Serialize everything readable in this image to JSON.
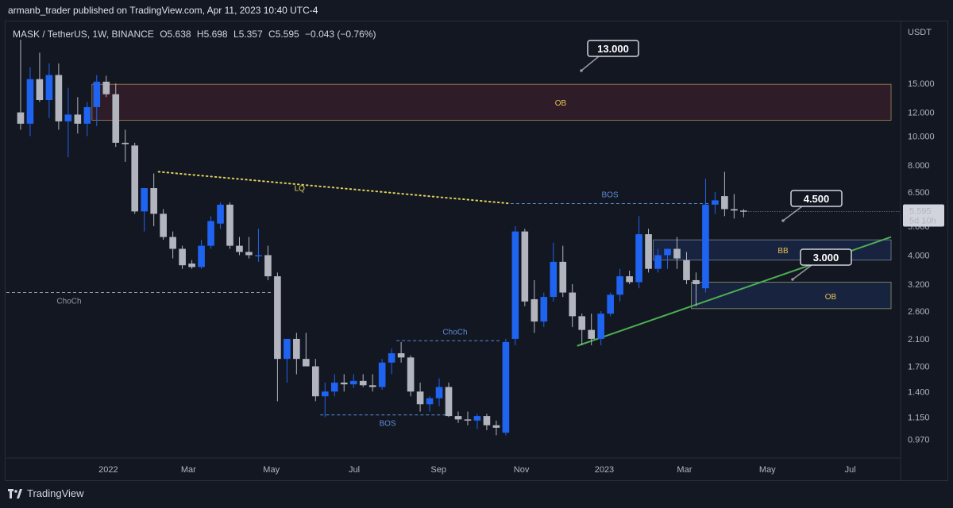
{
  "header": {
    "publisher": "armanb_trader published on TradingView.com, Apr 11, 2023 10:40 UTC-4",
    "symbol": "MASK / TetherUS, 1W, BINANCE",
    "open": "O5.638",
    "high": "H5.698",
    "low": "L5.357",
    "close": "C5.595",
    "change": "−0.043 (−0.76%)"
  },
  "footer": {
    "brand": "TradingView"
  },
  "colors": {
    "bull": "#1f63f1",
    "bear": "#b2b5be",
    "background": "#131722",
    "ob_zone": "#2e1c28",
    "bb_zone": "#17233f",
    "trendline": "#4caf50",
    "lq_line": "#e0d05a",
    "bos_line": "#5b8ad6",
    "label_text": "#e7c352"
  },
  "chart_data": {
    "type": "candlestick",
    "title": "MASK / TetherUS, 1W, BINANCE",
    "scale": "log",
    "ylabel": "USDT",
    "ylim": [
      0.85,
      21
    ],
    "y_ticks": [
      "15.000",
      "12.000",
      "10.000",
      "8.000",
      "6.500",
      "5.000",
      "4.000",
      "3.200",
      "2.600",
      "2.100",
      "1.700",
      "1.400",
      "1.150",
      "0.970"
    ],
    "x_ticks": [
      {
        "label": "2022",
        "date": "2022-01-01"
      },
      {
        "label": "Mar",
        "date": "2022-03-01"
      },
      {
        "label": "May",
        "date": "2022-05-01"
      },
      {
        "label": "Jul",
        "date": "2022-07-01"
      },
      {
        "label": "Sep",
        "date": "2022-09-01"
      },
      {
        "label": "Nov",
        "date": "2022-11-01"
      },
      {
        "label": "2023",
        "date": "2023-01-01"
      },
      {
        "label": "Mar",
        "date": "2023-03-01"
      },
      {
        "label": "May",
        "date": "2023-05-01"
      },
      {
        "label": "Jul",
        "date": "2023-07-01"
      }
    ],
    "candles": [
      [
        "2021-10-25",
        12.0,
        21.0,
        10.5,
        11.0
      ],
      [
        "2021-11-01",
        11.0,
        17.0,
        10.0,
        15.5
      ],
      [
        "2021-11-08",
        15.5,
        19.0,
        13.0,
        13.2
      ],
      [
        "2021-11-15",
        13.2,
        17.5,
        11.5,
        16.0
      ],
      [
        "2021-11-22",
        16.0,
        17.5,
        10.5,
        11.2
      ],
      [
        "2021-11-29",
        11.2,
        14.5,
        8.5,
        11.8
      ],
      [
        "2021-12-06",
        11.8,
        13.5,
        10.2,
        11.0
      ],
      [
        "2021-12-13",
        11.0,
        13.0,
        10.0,
        12.5
      ],
      [
        "2021-12-20",
        12.5,
        16.0,
        10.8,
        15.2
      ],
      [
        "2021-12-27",
        15.2,
        15.9,
        13.5,
        13.8
      ],
      [
        "2022-01-03",
        13.8,
        15.0,
        9.2,
        9.5
      ],
      [
        "2022-01-10",
        9.5,
        10.5,
        8.2,
        9.4
      ],
      [
        "2022-01-17",
        9.3,
        9.5,
        5.5,
        5.6
      ],
      [
        "2022-01-24",
        5.6,
        6.7,
        4.8,
        6.7
      ],
      [
        "2022-01-31",
        6.7,
        7.5,
        5.0,
        5.5
      ],
      [
        "2022-02-07",
        5.5,
        5.7,
        4.5,
        4.6
      ],
      [
        "2022-02-14",
        4.6,
        4.8,
        3.9,
        4.2
      ],
      [
        "2022-02-21",
        4.2,
        4.3,
        3.6,
        3.7
      ],
      [
        "2022-02-28",
        3.75,
        3.85,
        3.6,
        3.65
      ],
      [
        "2022-03-07",
        3.65,
        4.5,
        3.6,
        4.3
      ],
      [
        "2022-03-14",
        4.3,
        5.4,
        4.2,
        5.2
      ],
      [
        "2022-03-21",
        5.1,
        6.0,
        4.9,
        5.9
      ],
      [
        "2022-03-28",
        5.9,
        6.0,
        4.2,
        4.3
      ],
      [
        "2022-04-04",
        4.3,
        4.6,
        4.0,
        4.1
      ],
      [
        "2022-04-11",
        4.1,
        4.6,
        3.9,
        4.0
      ],
      [
        "2022-04-18",
        4.0,
        4.9,
        3.8,
        4.0
      ],
      [
        "2022-04-25",
        4.0,
        4.3,
        3.3,
        3.4
      ],
      [
        "2022-05-02",
        3.4,
        3.5,
        1.3,
        1.8
      ],
      [
        "2022-05-09",
        1.8,
        2.1,
        1.5,
        2.1
      ],
      [
        "2022-05-16",
        2.1,
        2.2,
        1.6,
        1.8
      ],
      [
        "2022-05-23",
        1.8,
        2.2,
        1.7,
        1.7
      ],
      [
        "2022-05-30",
        1.7,
        1.8,
        1.3,
        1.35
      ],
      [
        "2022-06-06",
        1.35,
        1.5,
        1.15,
        1.4
      ],
      [
        "2022-06-13",
        1.4,
        1.6,
        1.35,
        1.5
      ],
      [
        "2022-06-20",
        1.5,
        1.6,
        1.4,
        1.48
      ],
      [
        "2022-06-27",
        1.48,
        1.6,
        1.44,
        1.52
      ],
      [
        "2022-07-04",
        1.52,
        1.6,
        1.45,
        1.47
      ],
      [
        "2022-07-11",
        1.47,
        1.6,
        1.4,
        1.45
      ],
      [
        "2022-07-18",
        1.45,
        1.8,
        1.42,
        1.75
      ],
      [
        "2022-07-25",
        1.75,
        1.95,
        1.6,
        1.88
      ],
      [
        "2022-08-01",
        1.88,
        2.05,
        1.75,
        1.82
      ],
      [
        "2022-08-08",
        1.82,
        1.85,
        1.35,
        1.4
      ],
      [
        "2022-08-15",
        1.4,
        1.5,
        1.2,
        1.27
      ],
      [
        "2022-08-22",
        1.27,
        1.35,
        1.2,
        1.33
      ],
      [
        "2022-08-29",
        1.33,
        1.55,
        1.25,
        1.45
      ],
      [
        "2022-09-05",
        1.45,
        1.5,
        1.15,
        1.16
      ],
      [
        "2022-09-12",
        1.16,
        1.2,
        1.1,
        1.13
      ],
      [
        "2022-09-19",
        1.13,
        1.2,
        1.08,
        1.12
      ],
      [
        "2022-09-26",
        1.12,
        1.18,
        1.05,
        1.16
      ],
      [
        "2022-10-03",
        1.16,
        1.18,
        1.04,
        1.08
      ],
      [
        "2022-10-10",
        1.08,
        1.12,
        1.0,
        1.06
      ],
      [
        "2022-10-17",
        1.02,
        2.1,
        1.0,
        2.05
      ],
      [
        "2022-10-24",
        2.1,
        5.0,
        2.0,
        4.8
      ],
      [
        "2022-10-31",
        4.8,
        4.9,
        2.7,
        2.8
      ],
      [
        "2022-11-07",
        2.85,
        3.3,
        2.2,
        2.4
      ],
      [
        "2022-11-14",
        2.4,
        3.0,
        2.3,
        2.9
      ],
      [
        "2022-11-21",
        2.9,
        4.4,
        2.8,
        3.8
      ],
      [
        "2022-11-28",
        3.8,
        4.3,
        2.9,
        3.0
      ],
      [
        "2022-12-05",
        3.0,
        3.2,
        2.3,
        2.5
      ],
      [
        "2022-12-12",
        2.5,
        2.55,
        2.0,
        2.25
      ],
      [
        "2022-12-19",
        2.25,
        2.55,
        2.0,
        2.1
      ],
      [
        "2022-12-26",
        2.1,
        2.6,
        2.0,
        2.55
      ],
      [
        "2023-01-02",
        2.55,
        3.0,
        2.5,
        2.95
      ],
      [
        "2023-01-09",
        2.95,
        3.6,
        2.8,
        3.4
      ],
      [
        "2023-01-16",
        3.4,
        3.55,
        3.2,
        3.25
      ],
      [
        "2023-01-23",
        3.25,
        5.4,
        3.1,
        4.7
      ],
      [
        "2023-01-30",
        4.7,
        4.9,
        3.5,
        3.6
      ],
      [
        "2023-02-06",
        3.6,
        4.2,
        3.5,
        4.0
      ],
      [
        "2023-02-13",
        4.0,
        4.2,
        3.6,
        4.2
      ],
      [
        "2023-02-20",
        4.2,
        4.6,
        3.6,
        3.9
      ],
      [
        "2023-02-27",
        3.85,
        4.1,
        3.2,
        3.3
      ],
      [
        "2023-03-06",
        3.3,
        3.5,
        2.7,
        3.2
      ],
      [
        "2023-03-13",
        3.1,
        7.2,
        3.0,
        5.9
      ],
      [
        "2023-03-20",
        5.9,
        6.5,
        5.5,
        6.1
      ],
      [
        "2023-03-27",
        6.3,
        7.6,
        5.4,
        5.7
      ],
      [
        "2023-04-03",
        5.7,
        6.4,
        5.3,
        5.638
      ],
      [
        "2023-04-10",
        5.638,
        5.698,
        5.357,
        5.595
      ]
    ],
    "zones": [
      {
        "label": "OB",
        "top": 14.9,
        "bottom": 11.3,
        "start": "2021-12-20",
        "end": "2023-07-31"
      },
      {
        "label": "BB",
        "top": 4.5,
        "bottom": 3.85,
        "start": "2023-02-06",
        "end": "2023-07-31"
      },
      {
        "label": "OB",
        "top": 3.25,
        "bottom": 2.65,
        "start": "2023-03-06",
        "end": "2023-07-31"
      }
    ],
    "trendline": {
      "start": [
        "2022-12-12",
        1.99
      ],
      "end": [
        "2023-07-31",
        4.6
      ]
    },
    "lq_line": {
      "label": "LQ",
      "start": [
        "2022-02-07",
        7.6
      ],
      "end": [
        "2022-10-24",
        5.95
      ]
    },
    "levels": [
      {
        "label": "BOS",
        "price": 5.95,
        "start": "2022-10-24",
        "end": "2023-03-20"
      },
      {
        "label": "ChoCh",
        "price": 3.0,
        "start": "2021-10-18",
        "end": "2022-05-02"
      },
      {
        "label": "ChoCh",
        "price": 2.07,
        "start": "2022-08-01",
        "end": "2022-10-17"
      },
      {
        "label": "BOS",
        "price": 1.17,
        "start": "2022-06-06",
        "end": "2022-09-12"
      }
    ],
    "callouts": [
      {
        "text": "13.000",
        "price": 13.0,
        "date": "2022-09-05"
      },
      {
        "text": "4.500",
        "price": 4.5,
        "date": "2023-04-10"
      },
      {
        "text": "3.000",
        "price": 3.0,
        "date": "2023-04-17"
      }
    ],
    "last_price": {
      "value": "5.595",
      "countdown": "5d 10h"
    }
  }
}
